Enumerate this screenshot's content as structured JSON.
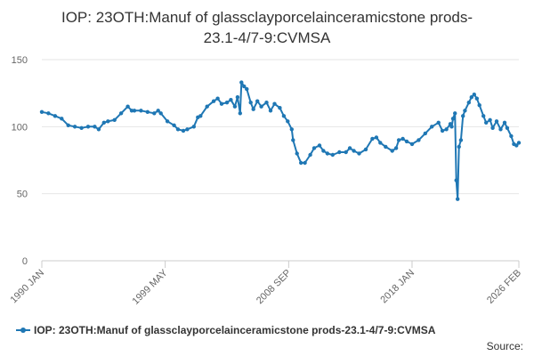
{
  "chart_data": {
    "type": "line",
    "title_lines": [
      "IOP: 23OTH:Manuf of glassclayporcelainceramicstone prods-",
      "23.1-4/7-9:CVMSA"
    ],
    "xlabel": "",
    "ylabel": "",
    "ylim": [
      0,
      150
    ],
    "yticks": [
      "0",
      "50",
      "100",
      "150"
    ],
    "xlim": [
      1990.0,
      2026.08
    ],
    "xticks": [
      {
        "label": "1990 JAN",
        "x": 1990.0
      },
      {
        "label": "1999 MAY",
        "x": 1999.33
      },
      {
        "label": "2008 SEP",
        "x": 2008.67
      },
      {
        "label": "2018 JAN",
        "x": 2018.0
      },
      {
        "label": "2026 FEB",
        "x": 2026.08
      }
    ],
    "grid": "horizontal",
    "legend_position": "bottom-left",
    "series": [
      {
        "name": "IOP: 23OTH:Manuf of glassclayporcelainceramicstone prods-23.1-4/7-9:CVMSA",
        "color": "#1f77b4",
        "points": [
          [
            1990.0,
            111
          ],
          [
            1990.5,
            110
          ],
          [
            1991.0,
            108
          ],
          [
            1991.5,
            106
          ],
          [
            1992.0,
            101
          ],
          [
            1992.5,
            100
          ],
          [
            1993.0,
            99
          ],
          [
            1993.5,
            100
          ],
          [
            1994.0,
            100
          ],
          [
            1994.3,
            98
          ],
          [
            1994.7,
            103
          ],
          [
            1995.0,
            104
          ],
          [
            1995.5,
            105
          ],
          [
            1996.0,
            110
          ],
          [
            1996.5,
            115
          ],
          [
            1996.8,
            112
          ],
          [
            1997.0,
            112
          ],
          [
            1997.5,
            112
          ],
          [
            1998.0,
            111
          ],
          [
            1998.5,
            110
          ],
          [
            1998.8,
            112
          ],
          [
            1999.0,
            110
          ],
          [
            1999.5,
            104
          ],
          [
            2000.0,
            101
          ],
          [
            2000.3,
            98
          ],
          [
            2000.7,
            97
          ],
          [
            2001.0,
            98
          ],
          [
            2001.5,
            100
          ],
          [
            2001.8,
            107
          ],
          [
            2002.0,
            108
          ],
          [
            2002.5,
            115
          ],
          [
            2003.0,
            119
          ],
          [
            2003.3,
            121
          ],
          [
            2003.6,
            117
          ],
          [
            2004.0,
            118
          ],
          [
            2004.3,
            120
          ],
          [
            2004.6,
            115
          ],
          [
            2004.8,
            122
          ],
          [
            2005.0,
            110
          ],
          [
            2005.1,
            133
          ],
          [
            2005.3,
            130
          ],
          [
            2005.5,
            128
          ],
          [
            2005.8,
            118
          ],
          [
            2006.0,
            113
          ],
          [
            2006.3,
            119
          ],
          [
            2006.6,
            115
          ],
          [
            2007.0,
            118
          ],
          [
            2007.3,
            112
          ],
          [
            2007.6,
            117
          ],
          [
            2008.0,
            114
          ],
          [
            2008.3,
            108
          ],
          [
            2008.6,
            104
          ],
          [
            2008.9,
            98
          ],
          [
            2009.0,
            90
          ],
          [
            2009.3,
            80
          ],
          [
            2009.6,
            73
          ],
          [
            2009.9,
            73
          ],
          [
            2010.3,
            79
          ],
          [
            2010.6,
            84
          ],
          [
            2011.0,
            86
          ],
          [
            2011.3,
            82
          ],
          [
            2011.6,
            80
          ],
          [
            2012.0,
            79
          ],
          [
            2012.5,
            81
          ],
          [
            2013.0,
            81
          ],
          [
            2013.3,
            84
          ],
          [
            2013.6,
            82
          ],
          [
            2014.0,
            80
          ],
          [
            2014.5,
            83
          ],
          [
            2015.0,
            91
          ],
          [
            2015.3,
            92
          ],
          [
            2015.6,
            88
          ],
          [
            2016.0,
            85
          ],
          [
            2016.5,
            82
          ],
          [
            2016.8,
            84
          ],
          [
            2017.0,
            90
          ],
          [
            2017.3,
            91
          ],
          [
            2017.6,
            89
          ],
          [
            2018.0,
            87
          ],
          [
            2018.5,
            90
          ],
          [
            2019.0,
            95
          ],
          [
            2019.5,
            100
          ],
          [
            2020.0,
            103
          ],
          [
            2020.3,
            97
          ],
          [
            2020.6,
            98
          ],
          [
            2020.9,
            102
          ],
          [
            2021.0,
            100
          ],
          [
            2021.1,
            106
          ],
          [
            2021.25,
            110
          ],
          [
            2021.35,
            60
          ],
          [
            2021.45,
            46
          ],
          [
            2021.55,
            85
          ],
          [
            2021.7,
            90
          ],
          [
            2021.85,
            108
          ],
          [
            2022.0,
            112
          ],
          [
            2022.3,
            118
          ],
          [
            2022.5,
            122
          ],
          [
            2022.7,
            124
          ],
          [
            2022.9,
            121
          ],
          [
            2023.1,
            116
          ],
          [
            2023.4,
            108
          ],
          [
            2023.6,
            103
          ],
          [
            2023.9,
            105
          ],
          [
            2024.1,
            99
          ],
          [
            2024.4,
            104
          ],
          [
            2024.7,
            98
          ],
          [
            2025.0,
            103
          ],
          [
            2025.2,
            99
          ],
          [
            2025.5,
            93
          ],
          [
            2025.7,
            87
          ],
          [
            2025.9,
            86
          ],
          [
            2026.08,
            88
          ]
        ]
      }
    ]
  },
  "source_label": "Source:"
}
